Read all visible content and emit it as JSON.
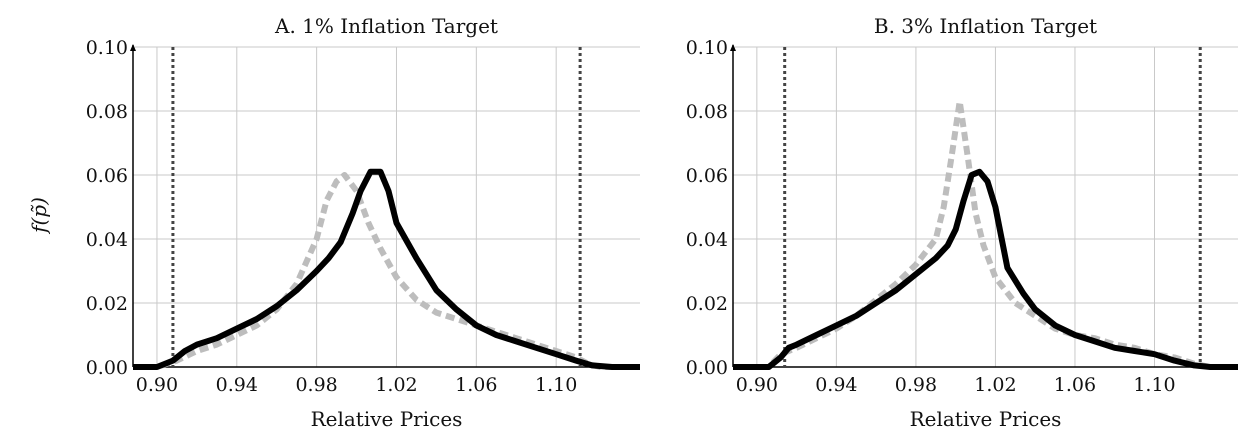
{
  "figure": {
    "shared_ylabel": "f(p̃)"
  },
  "chart_data": [
    {
      "type": "line",
      "title": "A. 1% Inflation Target",
      "xlabel": "Relative Prices",
      "ylabel": "f(p̃)",
      "xlim": [
        0.888,
        1.142
      ],
      "ylim": [
        0.0,
        0.1
      ],
      "xticks": [
        0.9,
        0.94,
        0.98,
        1.02,
        1.06,
        1.1
      ],
      "xtick_labels": [
        "0.90",
        "0.94",
        "0.98",
        "1.02",
        "1.06",
        "1.10"
      ],
      "yticks": [
        0.0,
        0.02,
        0.04,
        0.06,
        0.08,
        0.1
      ],
      "ytick_labels": [
        "0.00",
        "0.02",
        "0.04",
        "0.06",
        "0.08",
        "0.10"
      ],
      "grid": true,
      "series": [
        {
          "style": "solid",
          "color": "#000000",
          "x": [
            0.888,
            0.9,
            0.908,
            0.914,
            0.92,
            0.93,
            0.94,
            0.95,
            0.96,
            0.97,
            0.98,
            0.986,
            0.992,
            0.998,
            1.002,
            1.007,
            1.012,
            1.016,
            1.02,
            1.03,
            1.04,
            1.05,
            1.06,
            1.07,
            1.08,
            1.09,
            1.1,
            1.11,
            1.118,
            1.128,
            1.142
          ],
          "y": [
            0.0,
            0.0,
            0.002,
            0.005,
            0.007,
            0.009,
            0.012,
            0.015,
            0.019,
            0.024,
            0.03,
            0.034,
            0.039,
            0.048,
            0.055,
            0.061,
            0.061,
            0.055,
            0.045,
            0.034,
            0.024,
            0.018,
            0.013,
            0.01,
            0.008,
            0.006,
            0.004,
            0.002,
            0.0005,
            0.0,
            0.0
          ]
        },
        {
          "style": "dashed",
          "color": "#bdbdbd",
          "x": [
            0.888,
            0.9,
            0.91,
            0.92,
            0.93,
            0.94,
            0.95,
            0.96,
            0.97,
            0.98,
            0.985,
            0.99,
            0.994,
            1.0,
            1.006,
            1.012,
            1.02,
            1.03,
            1.04,
            1.05,
            1.06,
            1.07,
            1.08,
            1.09,
            1.1,
            1.11,
            1.116,
            1.122,
            1.142
          ],
          "y": [
            0.0,
            0.0,
            0.002,
            0.005,
            0.007,
            0.01,
            0.013,
            0.018,
            0.026,
            0.04,
            0.052,
            0.058,
            0.06,
            0.055,
            0.045,
            0.037,
            0.028,
            0.021,
            0.017,
            0.015,
            0.013,
            0.011,
            0.009,
            0.007,
            0.005,
            0.003,
            0.001,
            0.0,
            0.0
          ]
        }
      ],
      "vlines": [
        {
          "x": 0.908,
          "style": "dotted",
          "color": "#444444"
        },
        {
          "x": 1.112,
          "style": "dotted",
          "color": "#444444"
        }
      ]
    },
    {
      "type": "line",
      "title": "B. 3% Inflation Target",
      "xlabel": "Relative Prices",
      "ylabel": "f(p̃)",
      "xlim": [
        0.888,
        1.142
      ],
      "ylim": [
        0.0,
        0.1
      ],
      "xticks": [
        0.9,
        0.94,
        0.98,
        1.02,
        1.06,
        1.1
      ],
      "xtick_labels": [
        "0.90",
        "0.94",
        "0.98",
        "1.02",
        "1.06",
        "1.10"
      ],
      "yticks": [
        0.0,
        0.02,
        0.04,
        0.06,
        0.08,
        0.1
      ],
      "ytick_labels": [
        "0.00",
        "0.02",
        "0.04",
        "0.06",
        "0.08",
        "0.10"
      ],
      "grid": true,
      "series": [
        {
          "style": "solid",
          "color": "#000000",
          "x": [
            0.888,
            0.906,
            0.912,
            0.916,
            0.92,
            0.93,
            0.94,
            0.95,
            0.96,
            0.97,
            0.98,
            0.99,
            0.996,
            1.0,
            1.004,
            1.008,
            1.012,
            1.016,
            1.02,
            1.026,
            1.034,
            1.04,
            1.05,
            1.06,
            1.07,
            1.08,
            1.09,
            1.1,
            1.11,
            1.12,
            1.128,
            1.142
          ],
          "y": [
            0.0,
            0.0,
            0.003,
            0.006,
            0.007,
            0.01,
            0.013,
            0.016,
            0.02,
            0.024,
            0.029,
            0.034,
            0.038,
            0.043,
            0.052,
            0.06,
            0.061,
            0.058,
            0.05,
            0.031,
            0.023,
            0.018,
            0.013,
            0.01,
            0.008,
            0.006,
            0.005,
            0.004,
            0.002,
            0.0005,
            0.0,
            0.0
          ]
        },
        {
          "style": "dashed",
          "color": "#bdbdbd",
          "x": [
            0.888,
            0.906,
            0.912,
            0.92,
            0.93,
            0.94,
            0.95,
            0.96,
            0.97,
            0.98,
            0.99,
            0.994,
            0.998,
            1.002,
            1.006,
            1.01,
            1.014,
            1.02,
            1.03,
            1.04,
            1.05,
            1.06,
            1.07,
            1.08,
            1.09,
            1.1,
            1.11,
            1.12,
            1.128,
            1.142
          ],
          "y": [
            0.0,
            0.0,
            0.004,
            0.006,
            0.009,
            0.012,
            0.016,
            0.021,
            0.026,
            0.032,
            0.04,
            0.05,
            0.066,
            0.083,
            0.066,
            0.048,
            0.038,
            0.028,
            0.02,
            0.016,
            0.012,
            0.01,
            0.009,
            0.007,
            0.006,
            0.004,
            0.003,
            0.001,
            0.0,
            0.0
          ]
        }
      ],
      "vlines": [
        {
          "x": 0.914,
          "style": "dotted",
          "color": "#444444"
        },
        {
          "x": 1.123,
          "style": "dotted",
          "color": "#444444"
        }
      ]
    }
  ]
}
